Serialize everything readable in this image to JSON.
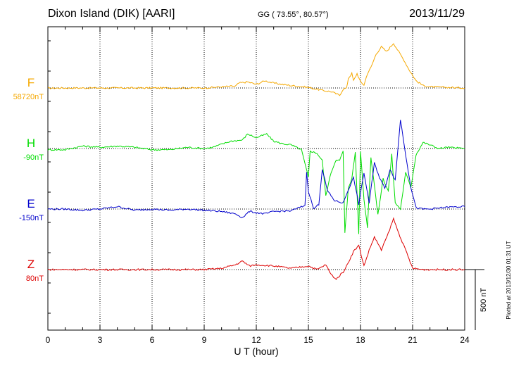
{
  "header": {
    "station": "Dixon Island (DIK)  [AARI]",
    "coords": "GG ( 73.55°,  80.57°)",
    "date": "2013/11/29"
  },
  "side_note": "Plotted at 2013/12/30 01:31  UT",
  "scale_label": "500 nT",
  "chart_data": {
    "type": "line",
    "title": "Dixon Island (DIK)  [AARI]",
    "xlabel": "U T (hour)",
    "xlim": [
      0,
      24
    ],
    "xticks": [
      0,
      3,
      6,
      9,
      12,
      15,
      18,
      21,
      24
    ],
    "tick_labels": [
      "0",
      "3",
      "6",
      "9",
      "12",
      "15",
      "18",
      "21",
      "24"
    ],
    "units": "nT",
    "scale_bar_nT": 500,
    "baseline_index": [
      0,
      1,
      2,
      3
    ],
    "colors": {
      "F": "#f5a800",
      "H": "#00dd00",
      "E": "#0000cc",
      "Z": "#dd0000"
    },
    "series": [
      {
        "name": "F",
        "baseline_label": "58720nT",
        "color": "#f5a800",
        "points": [
          [
            0,
            -2
          ],
          [
            1,
            0
          ],
          [
            3,
            0
          ],
          [
            5,
            0
          ],
          [
            7,
            0
          ],
          [
            9,
            0
          ],
          [
            10,
            10
          ],
          [
            10.8,
            15
          ],
          [
            11,
            40
          ],
          [
            11.5,
            50
          ],
          [
            12,
            30
          ],
          [
            12.5,
            60
          ],
          [
            13,
            40
          ],
          [
            14,
            20
          ],
          [
            15,
            5
          ],
          [
            15.8,
            -20
          ],
          [
            16.3,
            -30
          ],
          [
            16.8,
            -60
          ],
          [
            17,
            -10
          ],
          [
            17.2,
            0
          ],
          [
            17.3,
            80
          ],
          [
            17.5,
            120
          ],
          [
            17.6,
            60
          ],
          [
            17.8,
            120
          ],
          [
            18,
            50
          ],
          [
            18.2,
            25
          ],
          [
            18.4,
            120
          ],
          [
            18.6,
            170
          ],
          [
            18.9,
            280
          ],
          [
            19.2,
            340
          ],
          [
            19.5,
            300
          ],
          [
            19.9,
            370
          ],
          [
            20.2,
            300
          ],
          [
            20.5,
            230
          ],
          [
            20.8,
            150
          ],
          [
            21.2,
            60
          ],
          [
            21.6,
            20
          ],
          [
            22,
            10
          ],
          [
            23,
            5
          ],
          [
            24,
            0
          ]
        ]
      },
      {
        "name": "H",
        "baseline_label": "-90nT",
        "color": "#00dd00",
        "points": [
          [
            0,
            -10
          ],
          [
            1,
            -10
          ],
          [
            2,
            20
          ],
          [
            3,
            10
          ],
          [
            4,
            20
          ],
          [
            5,
            10
          ],
          [
            6,
            -10
          ],
          [
            7,
            -10
          ],
          [
            8,
            10
          ],
          [
            9,
            0
          ],
          [
            9.5,
            10
          ],
          [
            10.5,
            60
          ],
          [
            11.2,
            70
          ],
          [
            11.5,
            120
          ],
          [
            12,
            90
          ],
          [
            12.6,
            120
          ],
          [
            13,
            60
          ],
          [
            13.5,
            40
          ],
          [
            14,
            30
          ],
          [
            14.6,
            -10
          ],
          [
            15,
            -240
          ],
          [
            15.1,
            -20
          ],
          [
            15.5,
            -40
          ],
          [
            15.8,
            -100
          ],
          [
            16,
            -390
          ],
          [
            16.3,
            -200
          ],
          [
            16.6,
            -90
          ],
          [
            16.8,
            -100
          ],
          [
            17,
            -20
          ],
          [
            17.1,
            -700
          ],
          [
            17.3,
            -320
          ],
          [
            17.5,
            -250
          ],
          [
            17.7,
            -30
          ],
          [
            17.9,
            -700
          ],
          [
            18,
            -20
          ],
          [
            18.2,
            -420
          ],
          [
            18.4,
            -650
          ],
          [
            18.6,
            -70
          ],
          [
            18.8,
            -300
          ],
          [
            19,
            -550
          ],
          [
            19.3,
            -250
          ],
          [
            19.6,
            -350
          ],
          [
            19.8,
            -50
          ],
          [
            20,
            -450
          ],
          [
            20.3,
            -500
          ],
          [
            20.6,
            -200
          ],
          [
            20.9,
            -320
          ],
          [
            21.2,
            -50
          ],
          [
            21.6,
            50
          ],
          [
            22,
            30
          ],
          [
            22.5,
            0
          ],
          [
            23,
            10
          ],
          [
            24,
            0
          ]
        ]
      },
      {
        "name": "E",
        "baseline_label": "-150nT",
        "color": "#0000cc",
        "points": [
          [
            0,
            0
          ],
          [
            1,
            0
          ],
          [
            2,
            -10
          ],
          [
            3,
            0
          ],
          [
            4,
            20
          ],
          [
            5,
            -10
          ],
          [
            6,
            0
          ],
          [
            7,
            -10
          ],
          [
            8,
            0
          ],
          [
            9,
            -10
          ],
          [
            10,
            -20
          ],
          [
            10.8,
            -40
          ],
          [
            11.2,
            -70
          ],
          [
            11.6,
            -20
          ],
          [
            12,
            -30
          ],
          [
            12.5,
            -40
          ],
          [
            13,
            -20
          ],
          [
            14,
            -15
          ],
          [
            14.8,
            30
          ],
          [
            14.9,
            300
          ],
          [
            15,
            150
          ],
          [
            15.3,
            0
          ],
          [
            15.6,
            40
          ],
          [
            15.8,
            330
          ],
          [
            16.1,
            150
          ],
          [
            16.5,
            70
          ],
          [
            17,
            50
          ],
          [
            17.3,
            160
          ],
          [
            17.6,
            260
          ],
          [
            17.9,
            40
          ],
          [
            18.2,
            300
          ],
          [
            18.5,
            50
          ],
          [
            18.8,
            380
          ],
          [
            19.1,
            260
          ],
          [
            19.4,
            170
          ],
          [
            19.7,
            330
          ],
          [
            20,
            240
          ],
          [
            20.3,
            740
          ],
          [
            20.6,
            450
          ],
          [
            20.9,
            180
          ],
          [
            21.2,
            10
          ],
          [
            21.6,
            0
          ],
          [
            22,
            0
          ],
          [
            23,
            15
          ],
          [
            24,
            20
          ]
        ]
      },
      {
        "name": "Z",
        "baseline_label": "80nT",
        "color": "#dd0000",
        "points": [
          [
            0,
            0
          ],
          [
            1,
            0
          ],
          [
            3,
            0
          ],
          [
            5,
            0
          ],
          [
            7,
            0
          ],
          [
            9,
            0
          ],
          [
            10,
            10
          ],
          [
            10.8,
            40
          ],
          [
            11.2,
            70
          ],
          [
            11.6,
            30
          ],
          [
            12,
            40
          ],
          [
            13,
            30
          ],
          [
            14,
            10
          ],
          [
            15,
            30
          ],
          [
            15.5,
            0
          ],
          [
            16,
            40
          ],
          [
            16.3,
            -40
          ],
          [
            16.6,
            -80
          ],
          [
            17,
            -20
          ],
          [
            17.2,
            30
          ],
          [
            17.6,
            150
          ],
          [
            17.9,
            200
          ],
          [
            18.2,
            30
          ],
          [
            18.5,
            160
          ],
          [
            18.8,
            270
          ],
          [
            19.2,
            160
          ],
          [
            19.6,
            300
          ],
          [
            19.9,
            420
          ],
          [
            20.2,
            300
          ],
          [
            20.6,
            160
          ],
          [
            21,
            10
          ],
          [
            21.6,
            0
          ],
          [
            22,
            0
          ],
          [
            23,
            0
          ],
          [
            24,
            0
          ]
        ]
      }
    ]
  }
}
